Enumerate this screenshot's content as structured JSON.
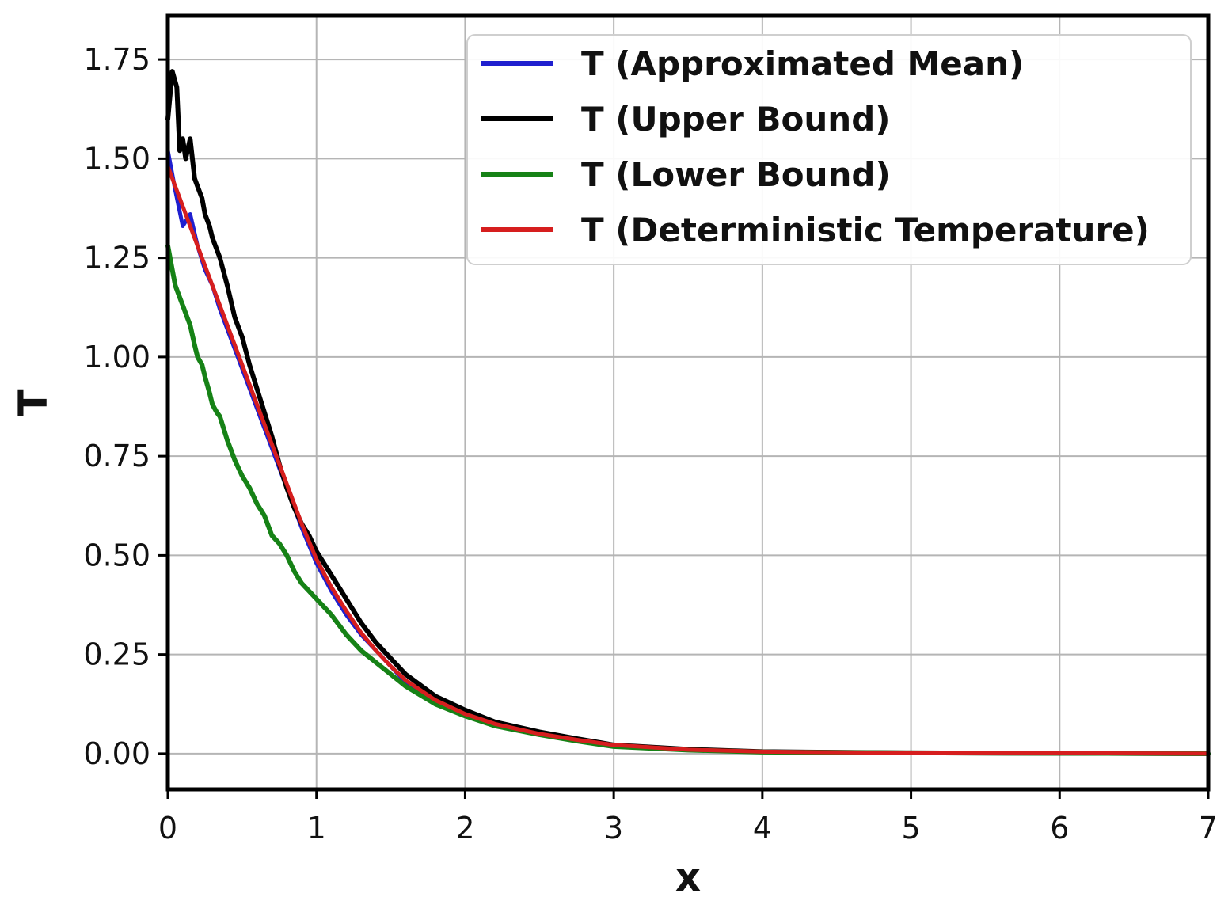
{
  "chart_data": {
    "type": "line",
    "title": "",
    "xlabel": "x",
    "ylabel": "T",
    "xlim": [
      0,
      7
    ],
    "ylim": [
      -0.09,
      1.86
    ],
    "xticks": [
      0,
      1,
      2,
      3,
      4,
      5,
      6,
      7
    ],
    "xtick_labels": [
      "0",
      "1",
      "2",
      "3",
      "4",
      "5",
      "6",
      "7"
    ],
    "yticks": [
      0,
      0.25,
      0.5,
      0.75,
      1,
      1.25,
      1.5,
      1.75
    ],
    "ytick_labels": [
      "0.00",
      "0.25",
      "0.50",
      "0.75",
      "1.00",
      "1.25",
      "1.50",
      "1.75"
    ],
    "grid": true,
    "legend_position": "upper-right",
    "series": [
      {
        "name": "T (Approximated Mean)",
        "color": "#1f1fcf",
        "points": [
          [
            0,
            1.52
          ],
          [
            0.05,
            1.42
          ],
          [
            0.1,
            1.33
          ],
          [
            0.15,
            1.36
          ],
          [
            0.2,
            1.28
          ],
          [
            0.25,
            1.22
          ],
          [
            0.3,
            1.18
          ],
          [
            0.35,
            1.12
          ],
          [
            0.4,
            1.07
          ],
          [
            0.5,
            0.97
          ],
          [
            0.6,
            0.87
          ],
          [
            0.7,
            0.77
          ],
          [
            0.8,
            0.67
          ],
          [
            0.9,
            0.57
          ],
          [
            1.0,
            0.48
          ],
          [
            1.1,
            0.41
          ],
          [
            1.2,
            0.35
          ],
          [
            1.3,
            0.3
          ],
          [
            1.4,
            0.26
          ],
          [
            1.5,
            0.22
          ],
          [
            1.6,
            0.18
          ],
          [
            1.8,
            0.13
          ],
          [
            2.0,
            0.1
          ],
          [
            2.2,
            0.075
          ],
          [
            2.5,
            0.05
          ],
          [
            2.75,
            0.035
          ],
          [
            3.0,
            0.02
          ],
          [
            3.5,
            0.01
          ],
          [
            4.0,
            0.005
          ],
          [
            5.0,
            0.002
          ],
          [
            6.0,
            0.001
          ],
          [
            7.0,
            0.0
          ]
        ]
      },
      {
        "name": "T (Upper Bound)",
        "color": "#000000",
        "points": [
          [
            0,
            1.6
          ],
          [
            0.03,
            1.72
          ],
          [
            0.06,
            1.68
          ],
          [
            0.08,
            1.52
          ],
          [
            0.1,
            1.55
          ],
          [
            0.12,
            1.5
          ],
          [
            0.15,
            1.55
          ],
          [
            0.18,
            1.45
          ],
          [
            0.2,
            1.43
          ],
          [
            0.23,
            1.4
          ],
          [
            0.25,
            1.36
          ],
          [
            0.28,
            1.33
          ],
          [
            0.3,
            1.3
          ],
          [
            0.35,
            1.25
          ],
          [
            0.4,
            1.18
          ],
          [
            0.45,
            1.1
          ],
          [
            0.5,
            1.05
          ],
          [
            0.55,
            0.98
          ],
          [
            0.6,
            0.92
          ],
          [
            0.65,
            0.86
          ],
          [
            0.7,
            0.8
          ],
          [
            0.75,
            0.73
          ],
          [
            0.8,
            0.67
          ],
          [
            0.85,
            0.62
          ],
          [
            0.9,
            0.58
          ],
          [
            0.95,
            0.55
          ],
          [
            1.0,
            0.51
          ],
          [
            1.1,
            0.45
          ],
          [
            1.2,
            0.39
          ],
          [
            1.3,
            0.33
          ],
          [
            1.4,
            0.28
          ],
          [
            1.5,
            0.24
          ],
          [
            1.6,
            0.2
          ],
          [
            1.8,
            0.145
          ],
          [
            2.0,
            0.11
          ],
          [
            2.2,
            0.08
          ],
          [
            2.5,
            0.055
          ],
          [
            2.75,
            0.038
          ],
          [
            3.0,
            0.022
          ],
          [
            3.5,
            0.011
          ],
          [
            4.0,
            0.005
          ],
          [
            5.0,
            0.002
          ],
          [
            6.0,
            0.001
          ],
          [
            7.0,
            0.0
          ]
        ]
      },
      {
        "name": "T (Lower Bound)",
        "color": "#168216",
        "points": [
          [
            0,
            1.28
          ],
          [
            0.03,
            1.22
          ],
          [
            0.05,
            1.18
          ],
          [
            0.08,
            1.15
          ],
          [
            0.1,
            1.13
          ],
          [
            0.13,
            1.1
          ],
          [
            0.15,
            1.08
          ],
          [
            0.18,
            1.03
          ],
          [
            0.2,
            1.0
          ],
          [
            0.23,
            0.98
          ],
          [
            0.25,
            0.95
          ],
          [
            0.28,
            0.91
          ],
          [
            0.3,
            0.88
          ],
          [
            0.33,
            0.86
          ],
          [
            0.35,
            0.85
          ],
          [
            0.4,
            0.79
          ],
          [
            0.45,
            0.74
          ],
          [
            0.5,
            0.7
          ],
          [
            0.55,
            0.67
          ],
          [
            0.6,
            0.63
          ],
          [
            0.65,
            0.6
          ],
          [
            0.7,
            0.55
          ],
          [
            0.75,
            0.53
          ],
          [
            0.8,
            0.5
          ],
          [
            0.85,
            0.46
          ],
          [
            0.9,
            0.43
          ],
          [
            1.0,
            0.39
          ],
          [
            1.1,
            0.35
          ],
          [
            1.2,
            0.3
          ],
          [
            1.3,
            0.26
          ],
          [
            1.4,
            0.23
          ],
          [
            1.5,
            0.2
          ],
          [
            1.6,
            0.17
          ],
          [
            1.8,
            0.125
          ],
          [
            2.0,
            0.095
          ],
          [
            2.2,
            0.07
          ],
          [
            2.5,
            0.048
          ],
          [
            2.75,
            0.032
          ],
          [
            3.0,
            0.018
          ],
          [
            3.5,
            0.009
          ],
          [
            4.0,
            0.004
          ],
          [
            5.0,
            0.002
          ],
          [
            6.0,
            0.001
          ],
          [
            7.0,
            0.0
          ]
        ]
      },
      {
        "name": "T (Deterministic Temperature)",
        "color": "#d61e1e",
        "points": [
          [
            0,
            1.48
          ],
          [
            0.1,
            1.38
          ],
          [
            0.2,
            1.28
          ],
          [
            0.3,
            1.18
          ],
          [
            0.4,
            1.08
          ],
          [
            0.5,
            0.98
          ],
          [
            0.6,
            0.88
          ],
          [
            0.7,
            0.78
          ],
          [
            0.8,
            0.68
          ],
          [
            0.9,
            0.58
          ],
          [
            1.0,
            0.49
          ],
          [
            1.1,
            0.42
          ],
          [
            1.2,
            0.36
          ],
          [
            1.3,
            0.305
          ],
          [
            1.4,
            0.26
          ],
          [
            1.5,
            0.22
          ],
          [
            1.6,
            0.185
          ],
          [
            1.8,
            0.135
          ],
          [
            2.0,
            0.1
          ],
          [
            2.2,
            0.075
          ],
          [
            2.5,
            0.05
          ],
          [
            2.75,
            0.035
          ],
          [
            3.0,
            0.022
          ],
          [
            3.5,
            0.01
          ],
          [
            4.0,
            0.005
          ],
          [
            5.0,
            0.002
          ],
          [
            6.0,
            0.001
          ],
          [
            7.0,
            0.0
          ]
        ]
      }
    ]
  }
}
